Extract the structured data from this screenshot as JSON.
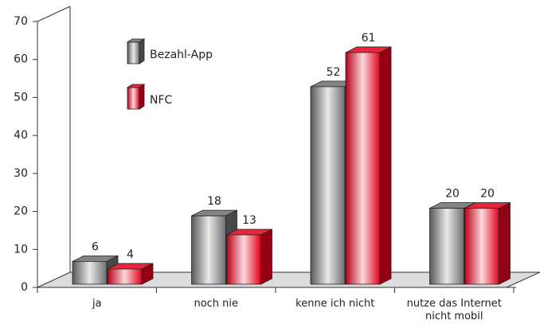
{
  "chart_data": {
    "type": "bar3d",
    "categories": [
      "ja",
      "noch nie",
      "kenne ich nicht",
      "nutze das Internet nicht mobil"
    ],
    "series": [
      {
        "name": "Bezahl-App",
        "color": "#6d6e71",
        "values": [
          6,
          18,
          52,
          20
        ]
      },
      {
        "name": "NFC",
        "color": "#e3001b",
        "values": [
          4,
          13,
          61,
          20
        ]
      }
    ],
    "ylim": [
      0,
      70
    ],
    "yticks": [
      0,
      10,
      20,
      30,
      40,
      50,
      60,
      70
    ],
    "legend": "upper left"
  }
}
